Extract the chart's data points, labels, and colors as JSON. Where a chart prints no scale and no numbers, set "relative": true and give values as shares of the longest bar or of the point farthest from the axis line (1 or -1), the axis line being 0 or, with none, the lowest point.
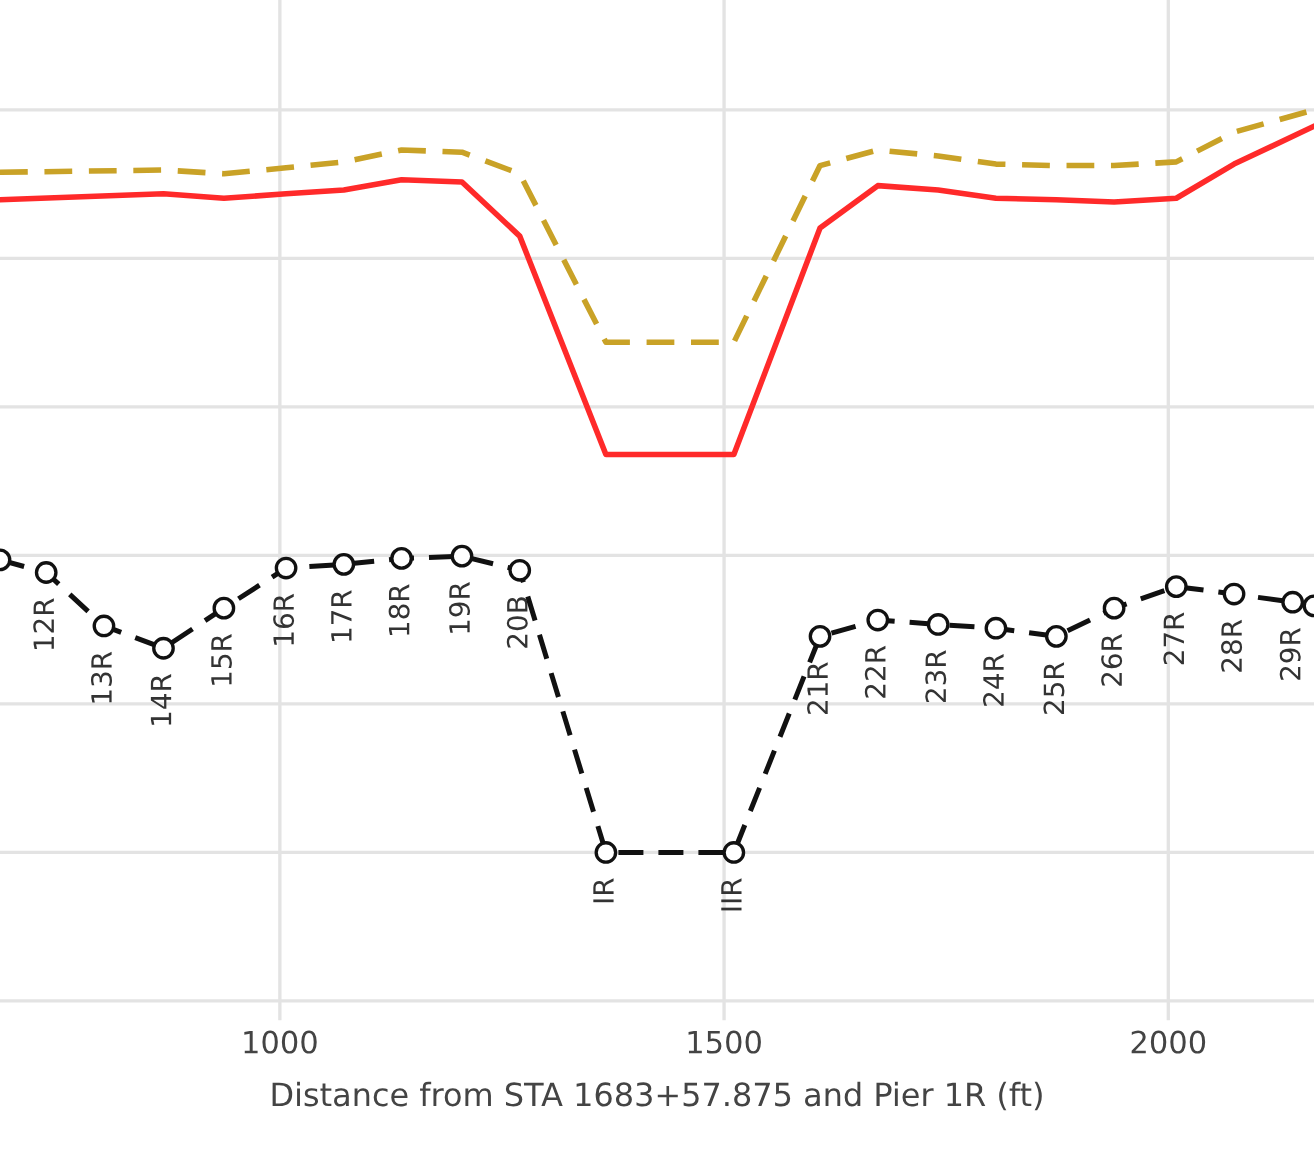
{
  "chart_data": {
    "type": "line",
    "relative": true,
    "xlabel": "Distance from STA 1683+57.875 and Pier 1R (ft)",
    "xlim": [
      685,
      2164
    ],
    "xticks": [
      1000,
      1500,
      2000
    ],
    "grid": true,
    "tick_labels": "x",
    "legend": false,
    "series": [
      {
        "color": "#c9a227",
        "line_style": "dashed",
        "marker": "none",
        "x": [
          685,
          870,
          937,
          1007,
          1072,
          1137,
          1205,
          1270,
          1367,
          1511,
          1608,
          1673,
          1741,
          1806,
          1874,
          1939,
          2009,
          2074,
          2164
        ],
        "values": [
          0.916,
          0.919,
          0.914,
          0.922,
          0.93,
          0.946,
          0.943,
          0.914,
          0.687,
          0.687,
          0.925,
          0.946,
          0.938,
          0.927,
          0.925,
          0.925,
          0.93,
          0.97,
          1.0
        ]
      },
      {
        "color": "#ff2a2a",
        "line_style": "solid",
        "marker": "none",
        "x": [
          685,
          869,
          937,
          1007,
          1072,
          1137,
          1205,
          1270,
          1367,
          1511,
          1608,
          1673,
          1741,
          1806,
          1874,
          1939,
          2009,
          2074,
          2164
        ],
        "values": [
          0.879,
          0.887,
          0.881,
          0.887,
          0.892,
          0.906,
          0.903,
          0.83,
          0.536,
          0.536,
          0.841,
          0.898,
          0.892,
          0.881,
          0.879,
          0.876,
          0.881,
          0.927,
          0.978
        ]
      },
      {
        "color": "#111111",
        "line_style": "dashed",
        "marker": "circle",
        "x": [
          685,
          737,
          802,
          869,
          937,
          1007,
          1072,
          1137,
          1205,
          1270,
          1367,
          1511,
          1608,
          1673,
          1741,
          1806,
          1874,
          1939,
          2009,
          2074,
          2140,
          2164
        ],
        "values": [
          0.394,
          0.377,
          0.305,
          0.275,
          0.329,
          0.383,
          0.388,
          0.396,
          0.399,
          0.38,
          0,
          0,
          0.291,
          0.313,
          0.307,
          0.302,
          0.291,
          0.329,
          0.358,
          0.348,
          0.337,
          0.332
        ]
      }
    ],
    "annotations": [
      {
        "text": "12R",
        "x": 737,
        "y": 0.377
      },
      {
        "text": "13R",
        "x": 802,
        "y": 0.305
      },
      {
        "text": "14R",
        "x": 869,
        "y": 0.275
      },
      {
        "text": "15R",
        "x": 937,
        "y": 0.329
      },
      {
        "text": "16R",
        "x": 1007,
        "y": 0.383
      },
      {
        "text": "17R",
        "x": 1072,
        "y": 0.388
      },
      {
        "text": "18R",
        "x": 1137,
        "y": 0.396
      },
      {
        "text": "19R",
        "x": 1205,
        "y": 0.399
      },
      {
        "text": "20B",
        "x": 1270,
        "y": 0.38
      },
      {
        "text": "IR",
        "x": 1367,
        "y": 0
      },
      {
        "text": "IIR",
        "x": 1511,
        "y": 0
      },
      {
        "text": "21R",
        "x": 1608,
        "y": 0.291
      },
      {
        "text": "22R",
        "x": 1673,
        "y": 0.313
      },
      {
        "text": "23R",
        "x": 1741,
        "y": 0.307
      },
      {
        "text": "24R",
        "x": 1806,
        "y": 0.302
      },
      {
        "text": "25R",
        "x": 1874,
        "y": 0.291
      },
      {
        "text": "26R",
        "x": 1939,
        "y": 0.329
      },
      {
        "text": "27R",
        "x": 2009,
        "y": 0.358
      },
      {
        "text": "28R",
        "x": 2074,
        "y": 0.348
      },
      {
        "text": "29R",
        "x": 2140,
        "y": 0.337
      }
    ]
  }
}
